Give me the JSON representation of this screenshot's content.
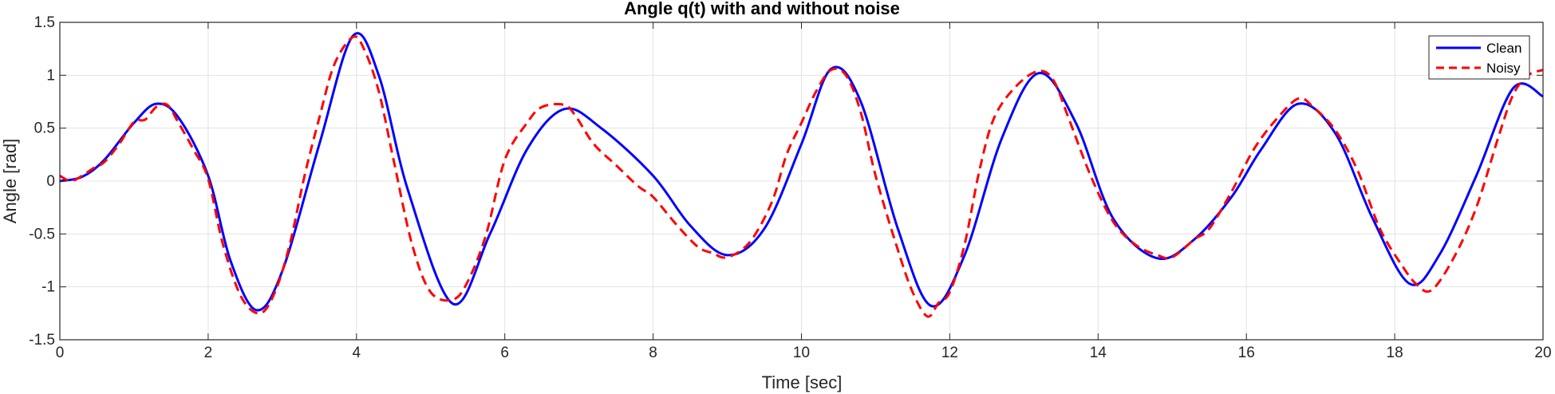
{
  "chart_data": {
    "type": "line",
    "title": "Angle q(t) with and without noise",
    "xlabel": "Time [sec]",
    "ylabel": "Angle [rad]",
    "xlim": [
      0,
      20
    ],
    "ylim": [
      -1.5,
      1.5
    ],
    "xticks": [
      0,
      2,
      4,
      6,
      8,
      10,
      12,
      14,
      16,
      18,
      20
    ],
    "yticks": [
      -1.5,
      -1,
      -0.5,
      0,
      0.5,
      1,
      1.5
    ],
    "xtick_labels": [
      "0",
      "2",
      "4",
      "6",
      "8",
      "10",
      "12",
      "14",
      "16",
      "18",
      "20"
    ],
    "ytick_labels": [
      "-1.5",
      "-1",
      "-0.5",
      "0",
      "0.5",
      "1",
      "1.5"
    ],
    "grid": true,
    "legend_position": "top-right",
    "series": [
      {
        "name": "Clean",
        "color": "#0000ff",
        "style": "solid",
        "x": [
          0,
          0.3,
          0.6,
          1.0,
          1.3,
          1.6,
          2.0,
          2.3,
          2.65,
          3.0,
          3.5,
          3.95,
          4.3,
          4.7,
          5.3,
          5.8,
          6.3,
          6.8,
          7.3,
          8.0,
          8.5,
          9.0,
          9.5,
          10.0,
          10.4,
          10.8,
          11.3,
          11.75,
          12.2,
          12.7,
          13.2,
          13.7,
          14.2,
          14.8,
          15.3,
          15.8,
          16.2,
          16.7,
          17.2,
          17.7,
          18.2,
          18.6,
          19.1,
          19.6,
          20.0
        ],
        "y": [
          0,
          0.04,
          0.2,
          0.55,
          0.73,
          0.6,
          0.05,
          -0.75,
          -1.22,
          -0.85,
          0.35,
          1.37,
          1.0,
          -0.1,
          -1.16,
          -0.5,
          0.3,
          0.68,
          0.5,
          0.05,
          -0.42,
          -0.7,
          -0.45,
          0.35,
          1.06,
          0.75,
          -0.45,
          -1.18,
          -0.7,
          0.4,
          1.02,
          0.55,
          -0.35,
          -0.73,
          -0.55,
          -0.15,
          0.3,
          0.73,
          0.45,
          -0.35,
          -0.97,
          -0.7,
          0.05,
          0.88,
          0.8
        ]
      },
      {
        "name": "Noisy",
        "color": "#ff0000",
        "style": "dashed",
        "x": [
          0,
          0.15,
          0.3,
          0.45,
          0.6,
          0.8,
          1.0,
          1.15,
          1.3,
          1.45,
          1.6,
          1.8,
          2.0,
          2.2,
          2.45,
          2.7,
          2.9,
          3.1,
          3.3,
          3.5,
          3.7,
          3.95,
          4.1,
          4.3,
          4.5,
          4.75,
          5.0,
          5.3,
          5.5,
          5.75,
          6.0,
          6.3,
          6.5,
          6.8,
          6.95,
          7.2,
          7.5,
          7.8,
          8.0,
          8.3,
          8.6,
          8.8,
          9.0,
          9.3,
          9.6,
          9.8,
          10.0,
          10.2,
          10.4,
          10.6,
          10.8,
          11.0,
          11.3,
          11.5,
          11.7,
          11.85,
          12.0,
          12.2,
          12.4,
          12.6,
          12.9,
          13.2,
          13.4,
          13.6,
          13.9,
          14.2,
          14.5,
          14.8,
          15.0,
          15.3,
          15.5,
          15.8,
          16.1,
          16.4,
          16.7,
          16.9,
          17.2,
          17.5,
          17.8,
          18.1,
          18.3,
          18.5,
          18.8,
          19.1,
          19.4,
          19.6,
          19.8,
          20.0
        ],
        "y": [
          0.05,
          0.0,
          0.05,
          0.12,
          0.18,
          0.35,
          0.56,
          0.58,
          0.7,
          0.72,
          0.55,
          0.3,
          0.02,
          -0.6,
          -1.1,
          -1.25,
          -1.05,
          -0.6,
          0.05,
          0.6,
          1.1,
          1.36,
          1.25,
          0.85,
          0.2,
          -0.6,
          -1.05,
          -1.12,
          -0.95,
          -0.5,
          0.2,
          0.55,
          0.7,
          0.72,
          0.62,
          0.35,
          0.15,
          -0.05,
          -0.15,
          -0.4,
          -0.62,
          -0.68,
          -0.72,
          -0.58,
          -0.2,
          0.25,
          0.55,
          0.85,
          1.05,
          1.0,
          0.65,
          0.05,
          -0.65,
          -1.05,
          -1.28,
          -1.15,
          -1.05,
          -0.6,
          0.1,
          0.6,
          0.9,
          1.04,
          0.95,
          0.6,
          0.05,
          -0.38,
          -0.6,
          -0.7,
          -0.72,
          -0.55,
          -0.45,
          -0.1,
          0.3,
          0.58,
          0.78,
          0.7,
          0.48,
          0.1,
          -0.45,
          -0.8,
          -0.98,
          -1.03,
          -0.72,
          -0.25,
          0.42,
          0.82,
          1.0,
          1.05
        ]
      }
    ]
  }
}
